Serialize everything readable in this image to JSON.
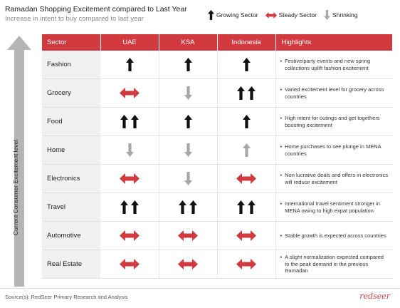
{
  "title": "Ramadan Shopping Excitement compared to Last Year",
  "subtitle": "Increase in intent to buy compared to last year",
  "legend": [
    {
      "label": "Growing Sector",
      "icon": "up"
    },
    {
      "label": "Steady Sector",
      "icon": "steady"
    },
    {
      "label": "Shrinking",
      "icon": "down"
    }
  ],
  "yaxis_label": "Current Consumer Excitement level",
  "colors": {
    "header": "#d13a3f",
    "up": "#111111",
    "steady": "#d13a3f",
    "down": "#a8a8a8"
  },
  "chart_data": {
    "type": "table",
    "columns": [
      "Sector",
      "UAE",
      "KSA",
      "Indonesia",
      "Highlights"
    ],
    "rows": [
      {
        "sector": "Fashion",
        "uae": "up",
        "ksa": "up",
        "indonesia": "up",
        "highlight": "Festive/party events and new spring collections uplift fashion excitement"
      },
      {
        "sector": "Grocery",
        "uae": "steady",
        "ksa": "down",
        "indonesia": "up2",
        "highlight": "Varied excitement level for grocery across countries"
      },
      {
        "sector": "Food",
        "uae": "up2",
        "ksa": "up",
        "indonesia": "up",
        "highlight": "High intent for outings and get togethers boosting excitement"
      },
      {
        "sector": "Home",
        "uae": "down",
        "ksa": "down",
        "indonesia": "upgray",
        "highlight": "Home purchases to see plunge in MENA countries"
      },
      {
        "sector": "Electronics",
        "uae": "steady",
        "ksa": "down",
        "indonesia": "steady",
        "highlight": "Non lucrative deals and offers in electronics will reduce excitement"
      },
      {
        "sector": "Travel",
        "uae": "up2",
        "ksa": "up2",
        "indonesia": "up2",
        "highlight": "International travel sentiment stronger in MENA owing to high expat population"
      },
      {
        "sector": "Automotive",
        "uae": "steady",
        "ksa": "steady",
        "indonesia": "steady",
        "highlight": "Stable growth is expected across countries"
      },
      {
        "sector": "Real Estate",
        "uae": "steady",
        "ksa": "steady",
        "indonesia": "steady",
        "highlight": "A slight normalization expected compared to the peak demand in the previous Ramadan"
      }
    ]
  },
  "source": "Source(s): RedSeer Primary Research and Analysis",
  "brand": "redseer"
}
